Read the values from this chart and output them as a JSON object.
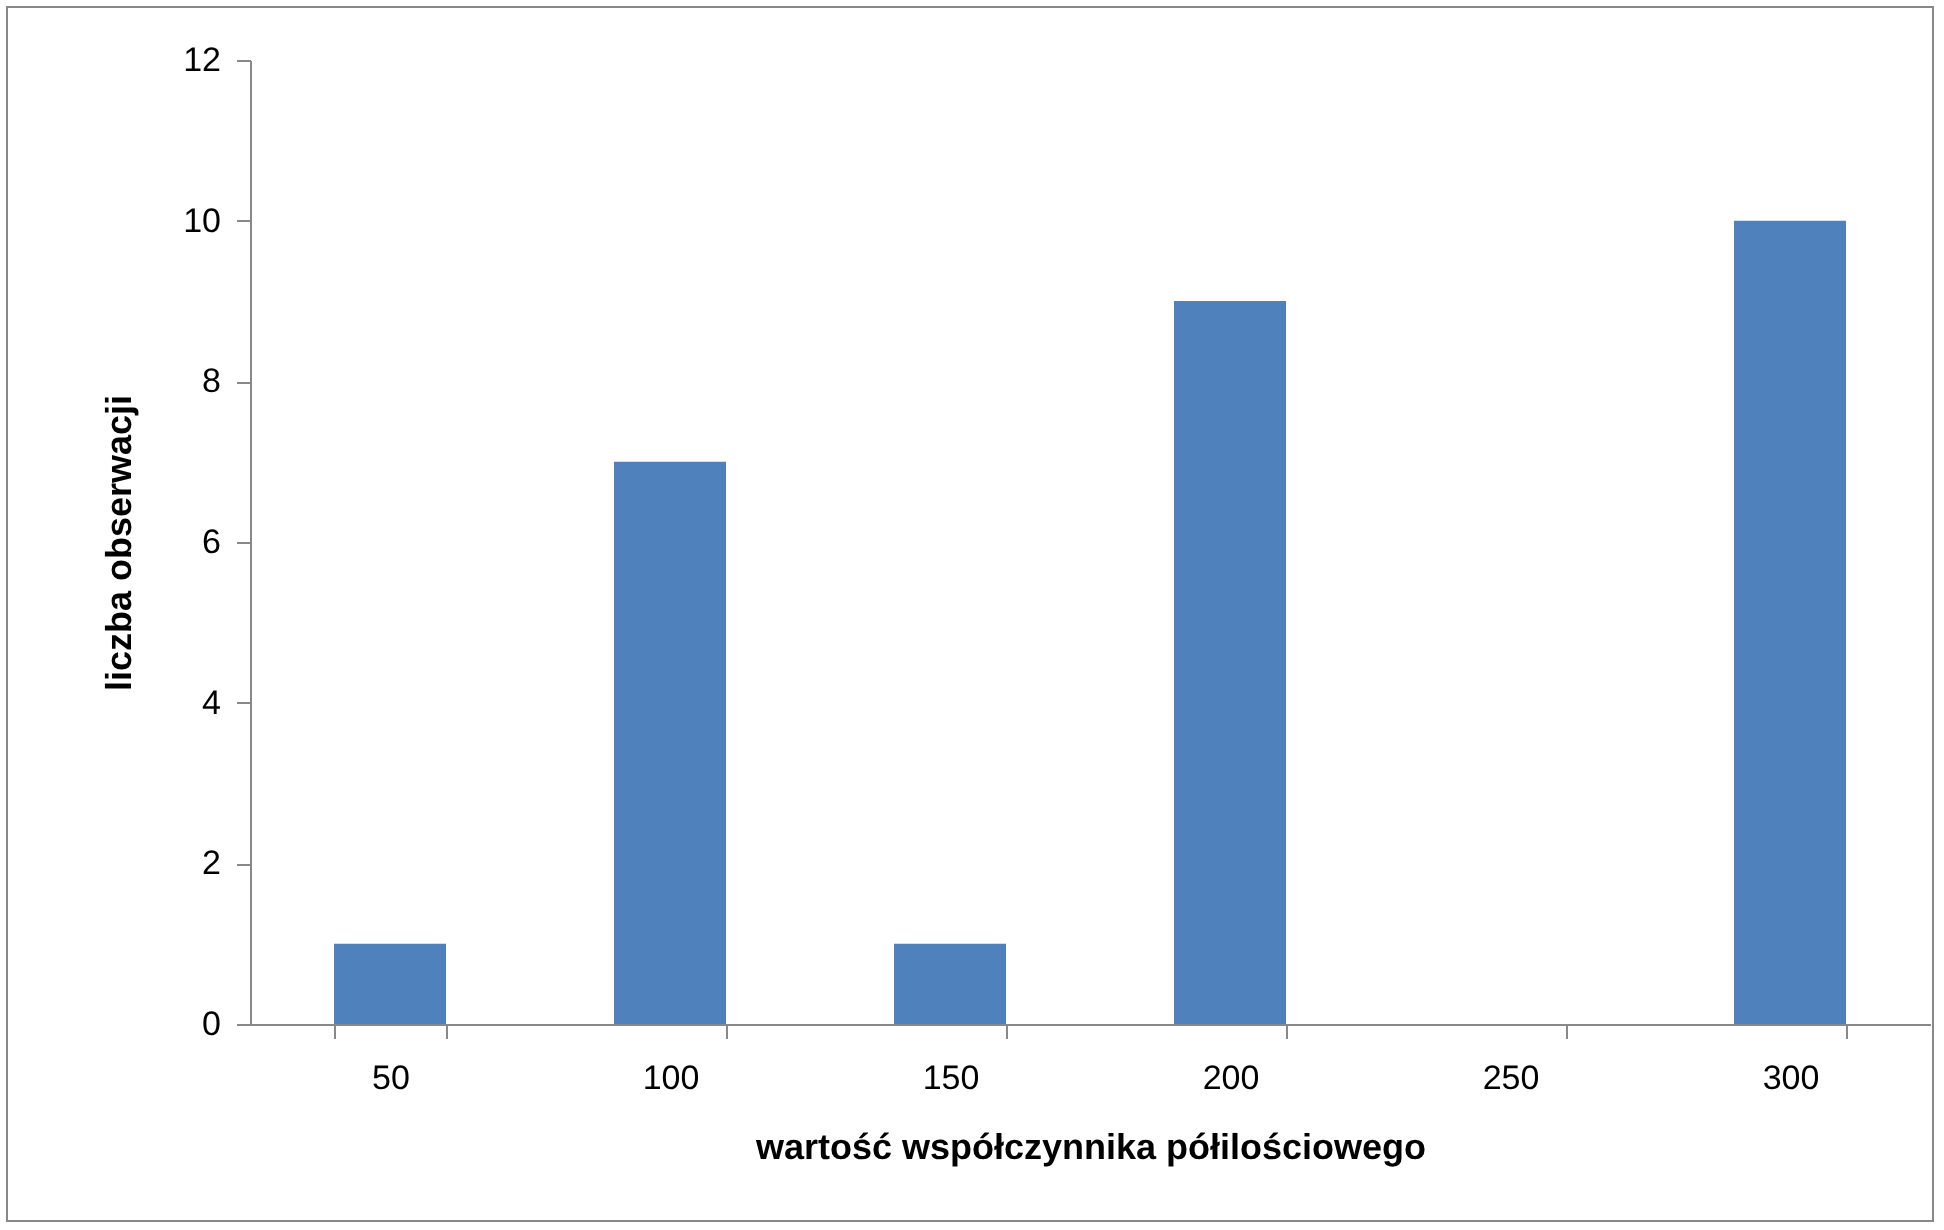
{
  "chart_data": {
    "type": "bar",
    "xlabel": "wartość współczynnika półilościowego",
    "ylabel": "liczba obserwacji",
    "categories": [
      "50",
      "100",
      "150",
      "200",
      "250",
      "300"
    ],
    "values": [
      1,
      7,
      1,
      9,
      0,
      10
    ],
    "color": "#4f81bd",
    "ylim": [
      0,
      12
    ],
    "yticks": [
      0,
      2,
      4,
      6,
      8,
      10,
      12
    ],
    "grid": false
  }
}
